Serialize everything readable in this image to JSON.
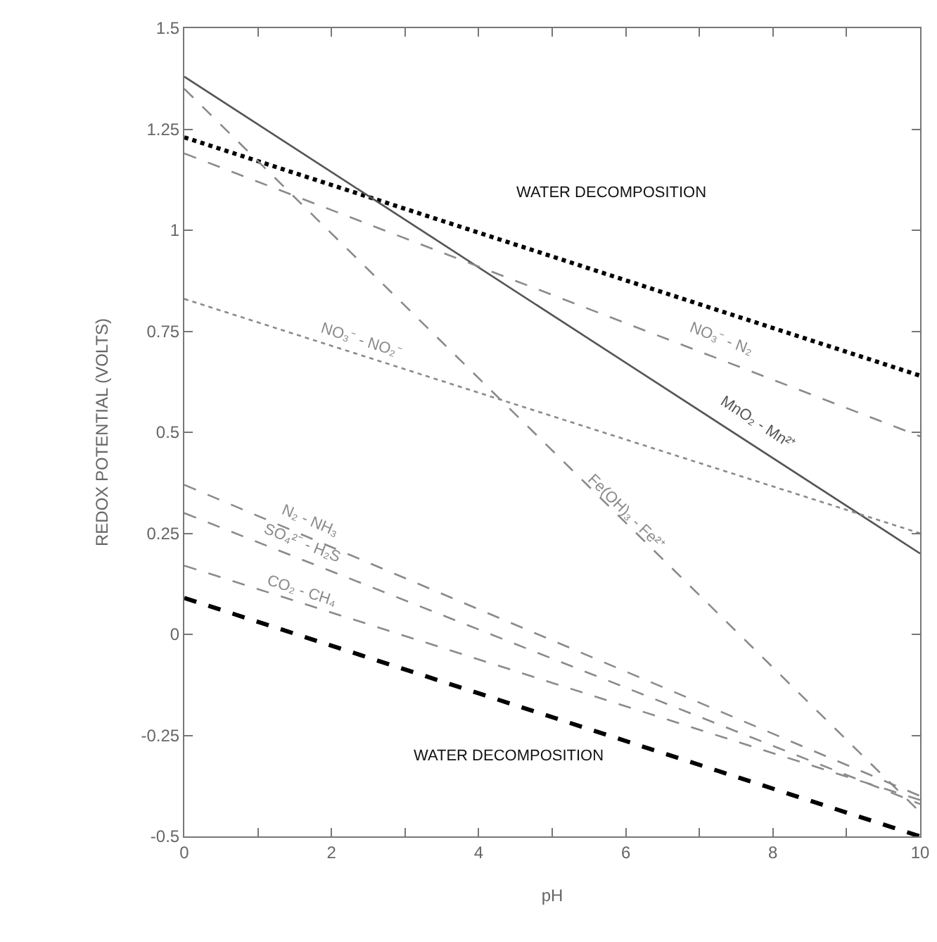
{
  "chart_data": {
    "type": "line",
    "xlabel": "pH",
    "ylabel": "REDOX POTENTIAL (VOLTS)",
    "xlim": [
      0,
      10
    ],
    "xticks": [
      0,
      {
        "value": 1,
        "label": null
      },
      2,
      {
        "value": 3,
        "label": null
      },
      4,
      {
        "value": 5,
        "label": null
      },
      6,
      {
        "value": 7,
        "label": null
      },
      8,
      {
        "value": 9,
        "label": null
      },
      10
    ],
    "ylim": [
      -0.5,
      1.5
    ],
    "yticks": [
      -0.5,
      -0.25,
      0,
      0.25,
      0.5,
      0.75,
      1,
      1.25,
      1.5
    ],
    "grid": false,
    "legend": false,
    "marker": "none",
    "x": [
      0,
      10
    ],
    "series": [
      {
        "color": "#000000",
        "line_style": "dotted",
        "values": [
          1.23,
          0.64
        ]
      },
      {
        "color": "#000000",
        "line_style": "dashed",
        "values": [
          0.09,
          -0.5
        ]
      },
      {
        "name": "MnO₂ - Mn²⁺",
        "color": "#555555",
        "line_style": "solid",
        "values": [
          1.38,
          0.2
        ]
      },
      {
        "name": "NO₃⁻ - N₂",
        "color": "#8a8a8a",
        "line_style": "dashed",
        "values": [
          1.19,
          0.49
        ]
      },
      {
        "name": "Fe(OH)₃ - Fe²⁺",
        "color": "#8a8a8a",
        "line_style": "dashed",
        "values": [
          1.35,
          -0.44
        ]
      },
      {
        "name": "NO₃⁻ - NO₂⁻",
        "color": "#8a8a8a",
        "line_style": "dotted",
        "values": [
          0.83,
          0.25
        ]
      },
      {
        "name": "N₂ - NH₃",
        "color": "#8a8a8a",
        "line_style": "dashed",
        "values": [
          0.37,
          -0.4
        ]
      },
      {
        "name": "SO₄²⁻ - H₂S",
        "color": "#8a8a8a",
        "line_style": "dashed",
        "values": [
          0.3,
          -0.42
        ]
      },
      {
        "name": "CO₂ - CH₄",
        "color": "#8a8a8a",
        "line_style": "dashed",
        "values": [
          0.17,
          -0.41
        ]
      }
    ],
    "annotations": [
      "WATER DECOMPOSITION",
      "WATER DECOMPOSITION"
    ]
  }
}
